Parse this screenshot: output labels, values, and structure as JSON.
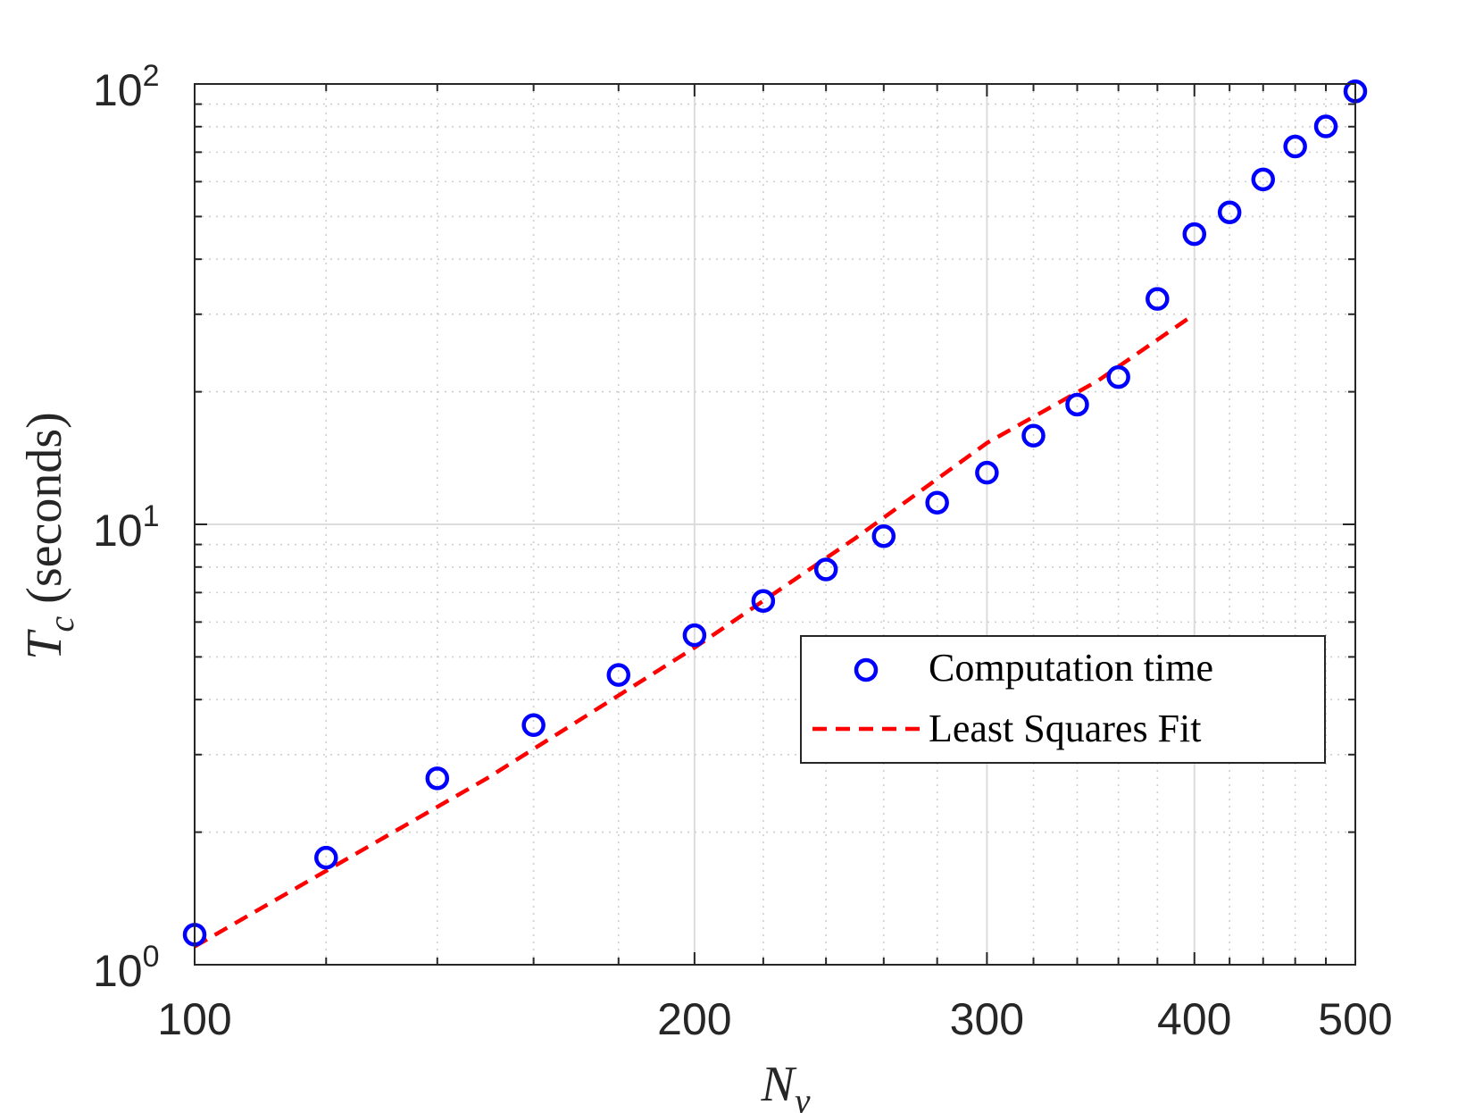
{
  "chart_data": {
    "type": "scatter",
    "title": "",
    "xlabel": {
      "var": "N",
      "sub": "y"
    },
    "ylabel": {
      "var": "T",
      "sub": "c",
      "unit": "(seconds)"
    },
    "xscale": "log",
    "yscale": "log",
    "xlim": [
      100,
      500
    ],
    "ylim": [
      1,
      100
    ],
    "grid": true,
    "minor_grid": true,
    "legend_position": "center-right",
    "x_ticks": [
      {
        "value": 100,
        "label": "100"
      },
      {
        "value": 200,
        "label": "200"
      },
      {
        "value": 300,
        "label": "300"
      },
      {
        "value": 400,
        "label": "400"
      },
      {
        "value": 500,
        "label": "500"
      }
    ],
    "y_ticks": [
      {
        "value": 1,
        "base": "10",
        "exp": "0"
      },
      {
        "value": 10,
        "base": "10",
        "exp": "1"
      },
      {
        "value": 100,
        "base": "10",
        "exp": "2"
      }
    ],
    "series": [
      {
        "name": "Computation time",
        "style": "markers",
        "marker": "circle",
        "color": "#0000ff",
        "x": [
          100,
          120,
          140,
          160,
          180,
          200,
          220,
          240,
          260,
          280,
          300,
          320,
          340,
          360,
          380,
          400,
          420,
          440,
          460,
          480,
          500
        ],
        "y": [
          1.17,
          1.75,
          2.65,
          3.5,
          4.55,
          5.6,
          6.7,
          7.9,
          9.4,
          11.2,
          13.1,
          15.9,
          18.7,
          21.6,
          32.5,
          45.6,
          51.1,
          60.7,
          72.1,
          80.1,
          96.2
        ]
      },
      {
        "name": "Least Squares Fit",
        "style": "dashed-line",
        "color": "#ff0000",
        "x": [
          100,
          150,
          200,
          250,
          300,
          350,
          400
        ],
        "y": [
          1.1,
          2.65,
          5.25,
          9.3,
          15.3,
          21.2,
          30.0
        ]
      }
    ]
  }
}
